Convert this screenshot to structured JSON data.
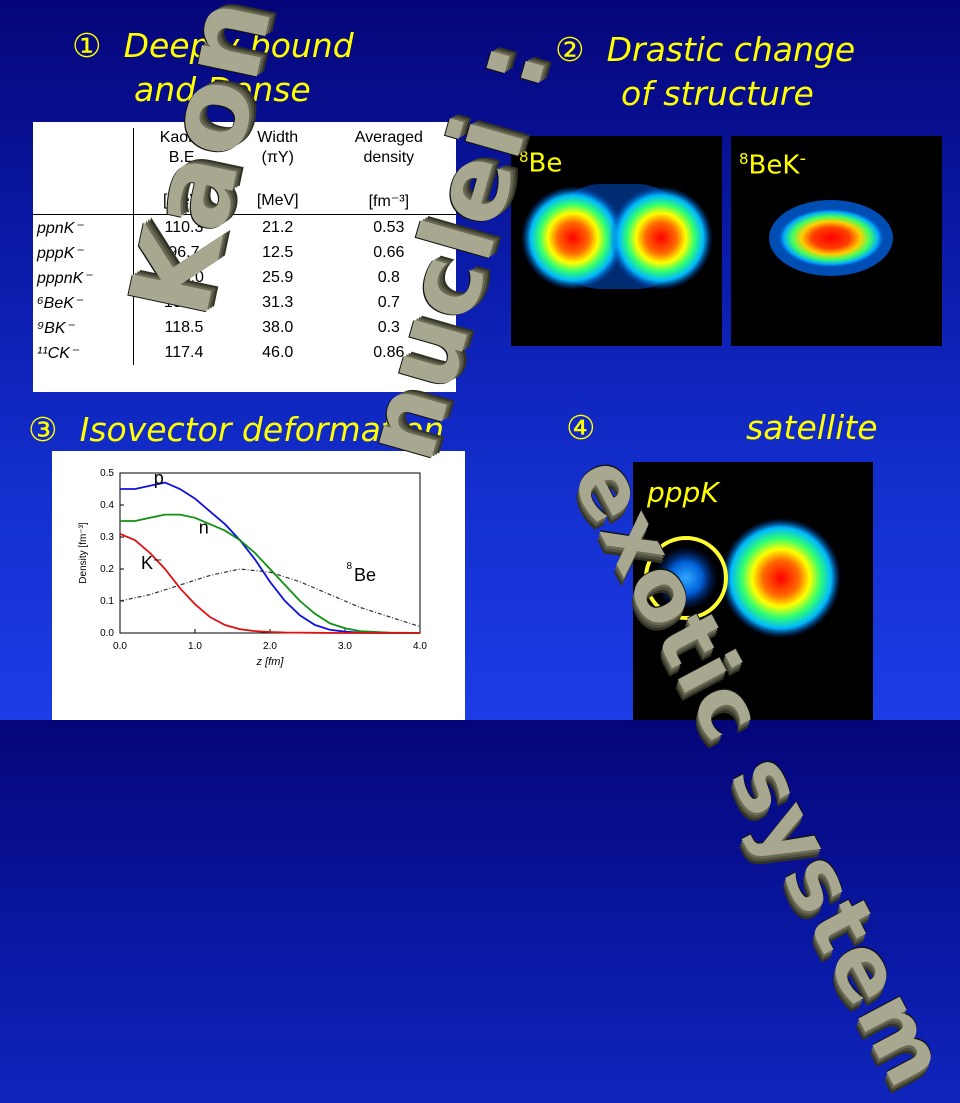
{
  "headings": {
    "h1_num": "①",
    "h1_line1": "Deeply bound",
    "h1_line2": "and Dense",
    "h2_num": "②",
    "h2_line1": "Drastic change",
    "h2_line2": "of structure",
    "h3_num": "③",
    "h3_text": "Isovector deformation",
    "h4_num": "④",
    "h4_text": "satellite",
    "h4_sub": "pppK"
  },
  "table": {
    "col1_header_l1": "Kaon's",
    "col1_header_l2": "B.E.",
    "col2_header_l1": "Width",
    "col2_header_l2": "(πY)",
    "col3_header_l1": "Averaged",
    "col3_header_l2": "density",
    "unit1": "[MeV]",
    "unit2": "[MeV]",
    "unit3": "[fm⁻³]",
    "rows": [
      {
        "label": "ppnK⁻",
        "be": "110.3",
        "width": "21.2",
        "density": "0.53"
      },
      {
        "label": "pppK⁻",
        "be": "96.7",
        "width": "12.5",
        "density": "0.66"
      },
      {
        "label": "pppnK⁻",
        "be": "105.0",
        "width": "25.9",
        "density": "0.8"
      },
      {
        "label": "⁶BeK⁻",
        "be": "104.2",
        "width": "31.3",
        "density": "0.7"
      },
      {
        "label": "⁹BK⁻",
        "be": "118.5",
        "width": "38.0",
        "density": "0.3"
      },
      {
        "label": "¹¹CK⁻",
        "be": "117.4",
        "width": "46.0",
        "density": "0.86"
      }
    ]
  },
  "labels": {
    "be8": "Be",
    "be8_mass": "8",
    "be8k": "BeK",
    "be8k_mass": "8",
    "be8k_sup": "-"
  },
  "overlay": {
    "word1": "Kaonic",
    "word2": "nuclei :",
    "word3": "exotic system"
  },
  "colors": {
    "heading": "#ffff00",
    "p_curve": "#1010e0",
    "n_curve": "#109010",
    "k_curve": "#e01010",
    "be_curve": "#333333"
  },
  "chart_data": {
    "type": "line",
    "xlabel": "z [fm]",
    "ylabel": "Density [fm⁻³]",
    "xlim": [
      0.0,
      4.0
    ],
    "ylim": [
      0.0,
      0.5
    ],
    "xticks": [
      "0.0",
      "1.0",
      "2.0",
      "3.0",
      "4.0"
    ],
    "yticks": [
      "0.0",
      "0.1",
      "0.2",
      "0.3",
      "0.4",
      "0.5"
    ],
    "series_labels": {
      "p": "p",
      "n": "n",
      "k": "K⁻",
      "be": "Be",
      "be_mass": "8"
    },
    "series": [
      {
        "key": "p",
        "x": [
          0,
          0.2,
          0.4,
          0.6,
          0.8,
          1.0,
          1.2,
          1.4,
          1.6,
          1.8,
          2.0,
          2.2,
          2.4,
          2.6,
          2.8,
          3.0,
          3.2,
          3.6,
          4.0
        ],
        "y": [
          0.45,
          0.45,
          0.46,
          0.47,
          0.45,
          0.42,
          0.38,
          0.34,
          0.29,
          0.23,
          0.16,
          0.1,
          0.055,
          0.025,
          0.01,
          0.004,
          0.001,
          0.0,
          0.0
        ]
      },
      {
        "key": "n",
        "x": [
          0,
          0.2,
          0.4,
          0.6,
          0.8,
          1.0,
          1.2,
          1.4,
          1.6,
          1.8,
          2.0,
          2.2,
          2.4,
          2.6,
          2.8,
          3.0,
          3.2,
          3.6,
          4.0
        ],
        "y": [
          0.35,
          0.35,
          0.36,
          0.37,
          0.37,
          0.36,
          0.34,
          0.32,
          0.29,
          0.25,
          0.2,
          0.15,
          0.1,
          0.06,
          0.03,
          0.015,
          0.006,
          0.001,
          0.0
        ]
      },
      {
        "key": "k",
        "x": [
          0,
          0.2,
          0.4,
          0.6,
          0.8,
          1.0,
          1.2,
          1.4,
          1.6,
          1.8,
          2.0,
          2.2,
          2.6,
          3.0,
          4.0
        ],
        "y": [
          0.31,
          0.29,
          0.25,
          0.2,
          0.14,
          0.09,
          0.05,
          0.025,
          0.012,
          0.006,
          0.003,
          0.0015,
          0.0005,
          0.0,
          0.0
        ]
      },
      {
        "key": "be",
        "x": [
          0,
          0.4,
          0.8,
          1.2,
          1.6,
          2.0,
          2.4,
          2.8,
          3.2,
          3.6,
          4.0
        ],
        "y": [
          0.1,
          0.12,
          0.15,
          0.18,
          0.2,
          0.19,
          0.16,
          0.12,
          0.08,
          0.05,
          0.02
        ]
      }
    ]
  }
}
